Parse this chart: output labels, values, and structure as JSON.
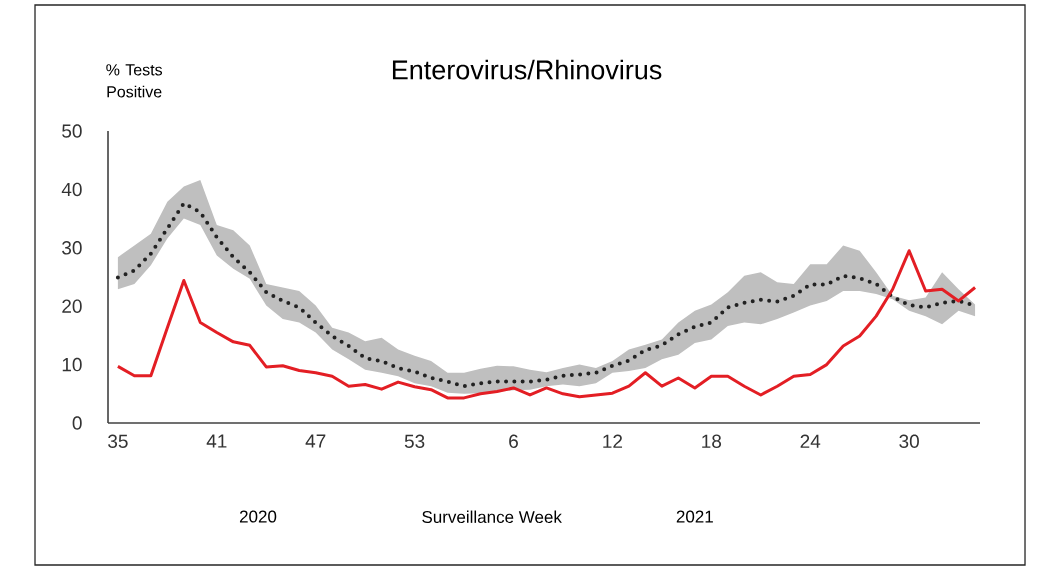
{
  "chart_data": {
    "type": "line",
    "title": "Enterovirus/Rhinovirus",
    "ylabel": "% Tests Positive",
    "xlabel": "Surveillance Week",
    "annotations": [
      "2020",
      "2021"
    ],
    "categories": [
      "35",
      null,
      null,
      null,
      null,
      null,
      "41",
      null,
      null,
      null,
      null,
      null,
      "47",
      null,
      null,
      null,
      null,
      null,
      "53",
      null,
      null,
      null,
      null,
      null,
      "6",
      null,
      null,
      null,
      null,
      null,
      "12",
      null,
      null,
      null,
      null,
      null,
      "18",
      null,
      null,
      null,
      null,
      null,
      "24",
      null,
      null,
      null,
      null,
      null,
      "30",
      null,
      null,
      null,
      null
    ],
    "ylim": [
      0,
      50
    ],
    "yticks": [
      0,
      10,
      20,
      30,
      40,
      50
    ],
    "grid": false,
    "marker": "none",
    "series": [
      {
        "color": "#222222",
        "line_style": "dotted",
        "values": [
          24.9,
          26.1,
          29.0,
          33.3,
          37.6,
          36.1,
          31.8,
          28.4,
          25.8,
          22.4,
          20.9,
          19.8,
          17.2,
          14.9,
          13.2,
          11.1,
          10.6,
          9.4,
          8.8,
          7.7,
          7.1,
          6.3,
          6.8,
          7.1,
          7.1,
          7.1,
          7.4,
          8.1,
          8.3,
          8.6,
          9.8,
          10.7,
          12.5,
          13.3,
          15.2,
          16.5,
          17.2,
          19.8,
          20.6,
          21.1,
          20.8,
          21.8,
          23.7,
          23.7,
          25.2,
          24.8,
          23.8,
          21.6,
          20.2,
          19.8,
          20.6,
          20.9,
          20.1
        ],
        "lower": [
          22.9,
          23.8,
          27.0,
          31.6,
          35.0,
          33.9,
          28.7,
          26.4,
          24.7,
          20.1,
          17.8,
          17.2,
          15.5,
          12.6,
          10.9,
          9.1,
          8.6,
          8.0,
          6.8,
          6.3,
          5.2,
          5.0,
          5.1,
          5.4,
          5.6,
          5.7,
          6.3,
          6.6,
          6.3,
          6.8,
          8.6,
          8.9,
          9.4,
          10.9,
          11.7,
          13.7,
          14.3,
          16.6,
          17.2,
          16.9,
          17.8,
          18.9,
          20.1,
          20.9,
          22.6,
          22.6,
          22.1,
          21.2,
          19.2,
          18.3,
          16.9,
          19.2,
          18.3
        ],
        "upper": [
          28.4,
          30.4,
          32.4,
          37.9,
          40.5,
          41.6,
          33.9,
          33.0,
          30.4,
          23.8,
          23.2,
          22.6,
          20.1,
          16.3,
          15.5,
          14.0,
          14.6,
          12.6,
          11.5,
          10.6,
          8.6,
          8.6,
          9.3,
          9.8,
          9.7,
          9.1,
          8.7,
          9.4,
          10.0,
          9.4,
          10.6,
          12.6,
          13.4,
          14.3,
          17.2,
          19.2,
          20.3,
          22.4,
          25.2,
          25.8,
          24.1,
          23.8,
          27.2,
          27.2,
          30.4,
          29.5,
          25.8,
          21.8,
          21.0,
          21.5,
          25.8,
          22.9,
          20.3
        ]
      },
      {
        "color": "#e31e24",
        "line_style": "solid",
        "values": [
          9.7,
          8.1,
          8.1,
          16.3,
          24.4,
          17.2,
          15.5,
          13.9,
          13.3,
          9.6,
          9.8,
          9.0,
          8.6,
          8.0,
          6.3,
          6.6,
          5.8,
          7.0,
          6.2,
          5.7,
          4.3,
          4.3,
          5.0,
          5.4,
          6.0,
          4.8,
          6.0,
          5.0,
          4.5,
          4.8,
          5.1,
          6.3,
          8.6,
          6.3,
          7.7,
          6.0,
          8.0,
          8.0,
          6.3,
          4.8,
          6.3,
          8.0,
          8.3,
          10.0,
          13.2,
          14.9,
          18.3,
          22.9,
          29.5,
          22.6,
          22.9,
          20.9,
          23.2
        ]
      }
    ]
  }
}
